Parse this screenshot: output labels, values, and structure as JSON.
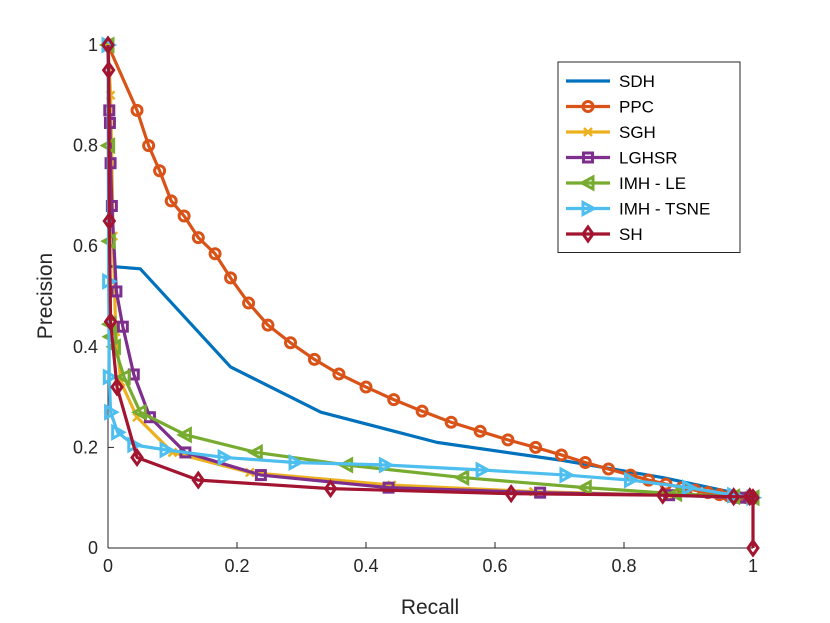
{
  "chart_data": {
    "type": "line",
    "title": "",
    "xlabel": "Recall",
    "ylabel": "Precision",
    "xlim": [
      0,
      1
    ],
    "ylim": [
      0,
      1
    ],
    "xticks": [
      0,
      0.2,
      0.4,
      0.6,
      0.8,
      1
    ],
    "yticks": [
      0,
      0.2,
      0.4,
      0.6,
      0.8,
      1
    ],
    "xtick_labels": [
      "0",
      "0.2",
      "0.4",
      "0.6",
      "0.8",
      "1"
    ],
    "ytick_labels": [
      "0",
      "0.2",
      "0.4",
      "0.6",
      "0.8",
      "1"
    ],
    "legend_position": "top-right",
    "series": [
      {
        "name": "SDH",
        "color": "#0072BD",
        "marker": "none",
        "x": [
          0,
          0.003,
          0.05,
          0.19,
          0.33,
          0.51,
          0.7,
          0.86,
          0.97,
          1
        ],
        "y": [
          1,
          0.56,
          0.555,
          0.36,
          0.27,
          0.21,
          0.175,
          0.14,
          0.11,
          0.1
        ]
      },
      {
        "name": "PPC",
        "color": "#D95319",
        "marker": "circle",
        "x": [
          0,
          0.045,
          0.063,
          0.08,
          0.098,
          0.118,
          0.14,
          0.166,
          0.19,
          0.218,
          0.248,
          0.283,
          0.32,
          0.358,
          0.4,
          0.443,
          0.487,
          0.532,
          0.577,
          0.62,
          0.663,
          0.703,
          0.74,
          0.776,
          0.81,
          0.838,
          0.865,
          0.89,
          0.91,
          0.93,
          0.948,
          0.963,
          0.977,
          0.99,
          1
        ],
        "y": [
          1,
          0.87,
          0.8,
          0.75,
          0.69,
          0.66,
          0.617,
          0.585,
          0.537,
          0.487,
          0.443,
          0.408,
          0.375,
          0.346,
          0.32,
          0.295,
          0.272,
          0.25,
          0.232,
          0.215,
          0.2,
          0.185,
          0.17,
          0.157,
          0.145,
          0.135,
          0.127,
          0.12,
          0.115,
          0.11,
          0.106,
          0.103,
          0.101,
          0.1,
          0.1
        ]
      },
      {
        "name": "SGH",
        "color": "#EDB120",
        "marker": "x",
        "x": [
          0,
          0.004,
          0.008,
          0.012,
          0.02,
          0.045,
          0.1,
          0.22,
          0.44,
          0.66,
          0.87,
          1
        ],
        "y": [
          1,
          0.9,
          0.62,
          0.43,
          0.33,
          0.26,
          0.19,
          0.15,
          0.125,
          0.112,
          0.105,
          0.1
        ]
      },
      {
        "name": "LGHSR",
        "color": "#7E2F8E",
        "marker": "square",
        "x": [
          0,
          0.002,
          0.003,
          0.004,
          0.006,
          0.013,
          0.023,
          0.04,
          0.065,
          0.12,
          0.237,
          0.435,
          0.67,
          0.87,
          0.98,
          1
        ],
        "y": [
          1,
          0.87,
          0.845,
          0.765,
          0.68,
          0.51,
          0.44,
          0.345,
          0.26,
          0.19,
          0.145,
          0.12,
          0.11,
          0.105,
          0.1,
          0.1
        ]
      },
      {
        "name": "IMH - LE",
        "color": "#77AC30",
        "marker": "triangle-left",
        "x": [
          0,
          0.001,
          0.002,
          0.003,
          0.004,
          0.01,
          0.025,
          0.05,
          0.12,
          0.23,
          0.37,
          0.55,
          0.74,
          0.88,
          0.97,
          1
        ],
        "y": [
          1,
          0.8,
          0.61,
          0.445,
          0.42,
          0.4,
          0.34,
          0.27,
          0.225,
          0.19,
          0.165,
          0.14,
          0.12,
          0.108,
          0.102,
          0.1
        ]
      },
      {
        "name": "IMH - TSNE",
        "color": "#4DBEEE",
        "marker": "triangle-right",
        "x": [
          0,
          0.001,
          0.002,
          0.004,
          0.015,
          0.04,
          0.09,
          0.18,
          0.29,
          0.43,
          0.58,
          0.71,
          0.81,
          0.9,
          0.97,
          1
        ],
        "y": [
          1,
          0.53,
          0.34,
          0.27,
          0.23,
          0.205,
          0.195,
          0.18,
          0.17,
          0.165,
          0.155,
          0.145,
          0.135,
          0.12,
          0.105,
          0.1
        ]
      },
      {
        "name": "SH",
        "color": "#A2142F",
        "marker": "diamond",
        "x": [
          0,
          0.001,
          0.002,
          0.004,
          0.014,
          0.045,
          0.14,
          0.345,
          0.625,
          0.86,
          0.97,
          0.995,
          1,
          1
        ],
        "y": [
          1,
          0.95,
          0.65,
          0.45,
          0.32,
          0.18,
          0.135,
          0.118,
          0.108,
          0.105,
          0.102,
          0.102,
          0.1,
          0
        ]
      }
    ]
  }
}
